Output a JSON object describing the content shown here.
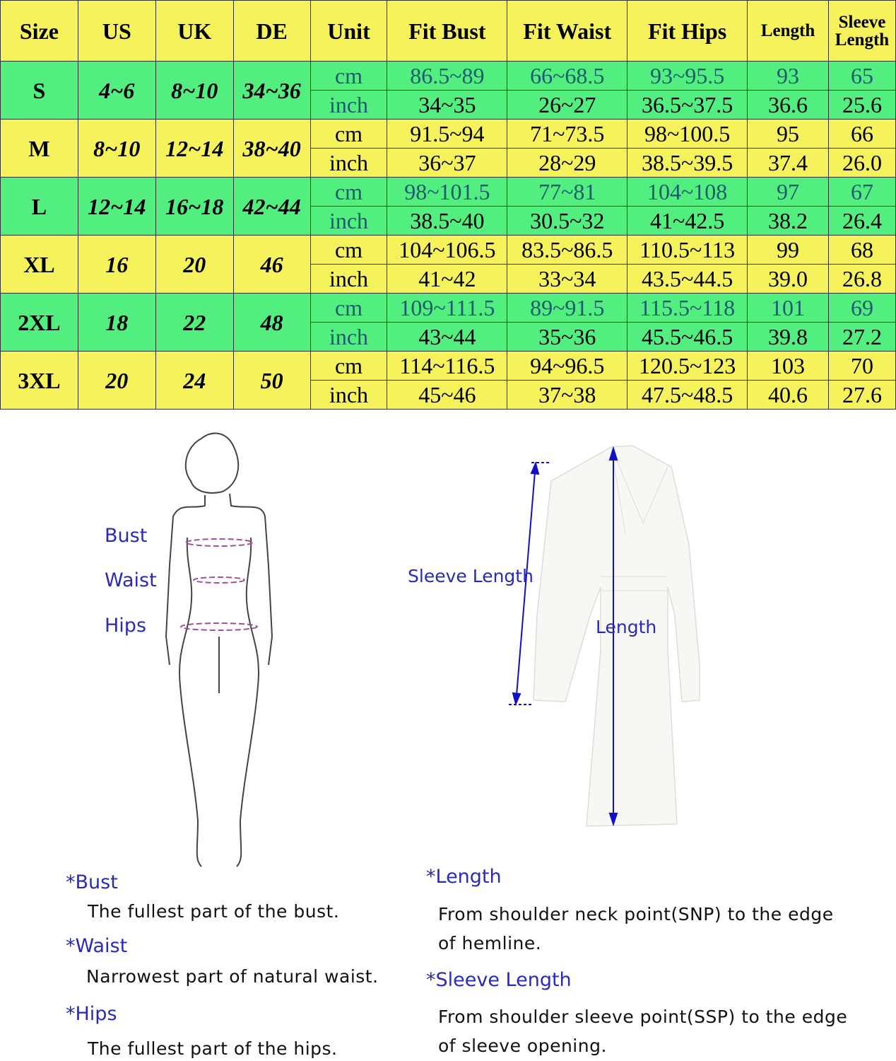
{
  "table": {
    "headers": [
      "Size",
      "US",
      "UK",
      "DE",
      "Unit",
      "Fit Bust",
      "Fit Waist",
      "Fit Hips",
      "Length",
      "Sleeve Length"
    ],
    "rows": [
      {
        "size": "S",
        "us": "4~6",
        "uk": "8~10",
        "de": "34~36",
        "cm": [
          "86.5~89",
          "66~68.5",
          "93~95.5",
          "93",
          "65"
        ],
        "inch": [
          "34~35",
          "26~27",
          "36.5~37.5",
          "36.6",
          "25.6"
        ]
      },
      {
        "size": "M",
        "us": "8~10",
        "uk": "12~14",
        "de": "38~40",
        "cm": [
          "91.5~94",
          "71~73.5",
          "98~100.5",
          "95",
          "66"
        ],
        "inch": [
          "36~37",
          "28~29",
          "38.5~39.5",
          "37.4",
          "26.0"
        ]
      },
      {
        "size": "L",
        "us": "12~14",
        "uk": "16~18",
        "de": "42~44",
        "cm": [
          "98~101.5",
          "77~81",
          "104~108",
          "97",
          "67"
        ],
        "inch": [
          "38.5~40",
          "30.5~32",
          "41~42.5",
          "38.2",
          "26.4"
        ]
      },
      {
        "size": "XL",
        "us": "16",
        "uk": "20",
        "de": "46",
        "cm": [
          "104~106.5",
          "83.5~86.5",
          "110.5~113",
          "99",
          "68"
        ],
        "inch": [
          "41~42",
          "33~34",
          "43.5~44.5",
          "39.0",
          "26.8"
        ]
      },
      {
        "size": "2XL",
        "us": "18",
        "uk": "22",
        "de": "48",
        "cm": [
          "109~111.5",
          "89~91.5",
          "115.5~118",
          "101",
          "69"
        ],
        "inch": [
          "43~44",
          "35~36",
          "45.5~46.5",
          "39.8",
          "27.2"
        ]
      },
      {
        "size": "3XL",
        "us": "20",
        "uk": "24",
        "de": "50",
        "cm": [
          "114~116.5",
          "94~96.5",
          "120.5~123",
          "103",
          "70"
        ],
        "inch": [
          "45~46",
          "37~38",
          "47.5~48.5",
          "40.6",
          "27.6"
        ]
      }
    ],
    "units": {
      "cm": "cm",
      "inch": "inch"
    },
    "colors": {
      "yellow": "#f6f25c",
      "green": "#52ef80"
    }
  },
  "figure": {
    "bust": "Bust",
    "waist": "Waist",
    "hips": "Hips"
  },
  "dress": {
    "sleeve_length": "Sleeve Length",
    "length": "Length"
  },
  "notes": {
    "bust_title": "*Bust",
    "bust_text": "The fullest part of the bust.",
    "waist_title": "*Waist",
    "waist_text": "Narrowest part of natural waist.",
    "hips_title": "*Hips",
    "hips_text": "The fullest part of the hips.",
    "length_title": "*Length",
    "length_text": "From shoulder neck point(SNP) to the edge of hemline.",
    "sleeve_title": "*Sleeve Length",
    "sleeve_text": "From shoulder sleeve point(SSP) to the edge of sleeve opening."
  }
}
